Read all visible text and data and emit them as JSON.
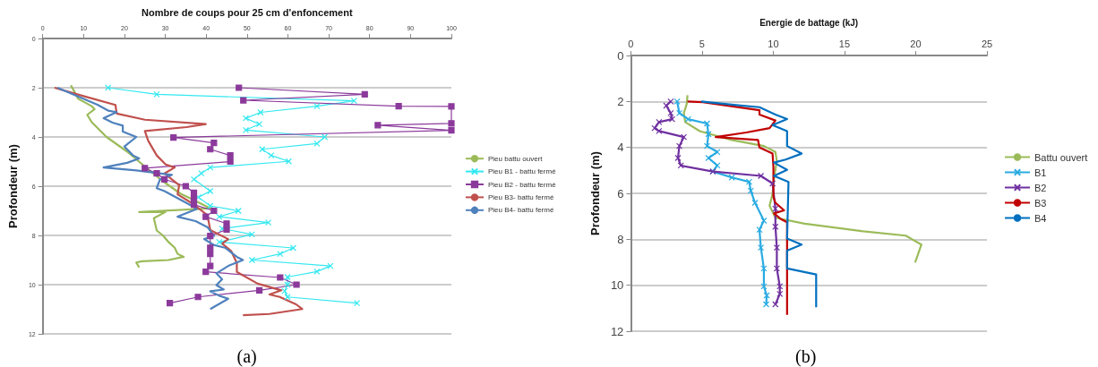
{
  "chart_data": [
    {
      "type": "line",
      "xlabel": "Nombre de coups pour 25 cm d'enfoncement",
      "ylabel": "Profondeur (m)",
      "xlim": [
        0,
        100
      ],
      "xticks": [
        0,
        10,
        20,
        30,
        40,
        50,
        60,
        70,
        80,
        90,
        100
      ],
      "ylim": [
        12,
        0
      ],
      "yticks": [
        0,
        2,
        4,
        6,
        8,
        10,
        12
      ],
      "grid": "y",
      "legend": "right",
      "annotations": [
        "(a)"
      ],
      "series": [
        {
          "name": "Pieu battu ouvert",
          "color": "#9bbb59",
          "marker": "none",
          "x": [
            6.9,
            8.7,
            12,
            12.7,
            10.9,
            12,
            15.6,
            20.7,
            25,
            29.4,
            33.7,
            37.4,
            41,
            23.6,
            30,
            27.2,
            27.9,
            29.4,
            30.8,
            32.3,
            33,
            34.5,
            30.8,
            24.3,
            22.9,
            23.6
          ],
          "values": [
            1.9,
            2.45,
            2.75,
            2.87,
            3.1,
            3.4,
            4.0,
            4.6,
            5.2,
            5.8,
            6.3,
            6.6,
            6.9,
            7.05,
            7.05,
            7.3,
            7.8,
            8.0,
            8.27,
            8.5,
            8.75,
            8.87,
            9.0,
            9.05,
            9.1,
            9.3
          ]
        },
        {
          "name": "Pieu B1 - battu fermé",
          "color": "#33e8f0",
          "marker": "cross",
          "x": [
            16,
            27.9,
            76.2,
            67.1,
            53.3,
            49.7,
            53,
            49.7,
            69,
            67.1,
            53.7,
            55.9,
            60.2,
            41,
            38.8,
            37,
            41,
            38.1,
            41,
            47.9,
            43.2,
            55.2,
            43.9,
            51.2,
            43.2,
            61.3,
            58.1,
            51.2,
            70.4,
            67.1,
            59.9,
            59.9,
            59.2,
            59.9,
            76.9
          ],
          "values": [
            2.0,
            2.27,
            2.53,
            2.75,
            3.0,
            3.24,
            3.48,
            3.72,
            4.0,
            4.27,
            4.5,
            4.75,
            4.99,
            5.24,
            5.48,
            5.72,
            6.2,
            6.45,
            6.8,
            7.0,
            7.24,
            7.48,
            7.72,
            7.96,
            8.27,
            8.51,
            8.75,
            9.0,
            9.24,
            9.47,
            9.69,
            10.0,
            10.26,
            10.5,
            10.75
          ]
        },
        {
          "name": "Pieu B2 - battu fermé",
          "color": "#8b3a9b",
          "marker": "square",
          "x": [
            48,
            78.8,
            49.1,
            87.1,
            100,
            100,
            82,
            100,
            32,
            41.9,
            41,
            45.9,
            45.9,
            25,
            27.9,
            29.8,
            35,
            37,
            37,
            37,
            41.9,
            39.9,
            45,
            45,
            41,
            41,
            41,
            41,
            39.9,
            58.1,
            62.1,
            53,
            38,
            31.1
          ],
          "values": [
            2.0,
            2.27,
            2.51,
            2.75,
            2.76,
            3.45,
            3.52,
            3.73,
            4.02,
            4.24,
            4.5,
            4.75,
            5.0,
            5.27,
            5.48,
            5.72,
            6.0,
            6.27,
            6.5,
            6.75,
            7.0,
            7.24,
            7.52,
            7.76,
            8.02,
            8.5,
            8.75,
            9.24,
            9.48,
            9.71,
            10.0,
            10.23,
            10.5,
            10.75
          ]
        },
        {
          "name": "Pieu B3- battu fermé",
          "color": "#c0504d",
          "marker": "none",
          "x": [
            2.9,
            9.8,
            17.8,
            18.1,
            25,
            39.9,
            35.2,
            25,
            25.8,
            27.9,
            30.1,
            32.3,
            29.8,
            31.6,
            33.4,
            33,
            36.6,
            40.3,
            41,
            45.4,
            43.9,
            46.1,
            47.5,
            47.5,
            52.6,
            58.4,
            55.5,
            58,
            62,
            63.5,
            55.5,
            49
          ],
          "values": [
            2.0,
            2.33,
            2.7,
            3.05,
            3.3,
            3.48,
            3.6,
            3.76,
            4.15,
            4.75,
            5.12,
            5.24,
            5.48,
            5.72,
            5.96,
            6.33,
            6.7,
            7.18,
            7.78,
            8.15,
            8.33,
            8.63,
            9.12,
            9.48,
            9.96,
            10.23,
            10.4,
            10.5,
            10.8,
            10.99,
            11.19,
            11.24
          ]
        },
        {
          "name": "Pieu B4- battu fermé",
          "color": "#4f81bd",
          "marker": "none",
          "x": [
            3.6,
            13.4,
            16,
            18.1,
            14.9,
            17.1,
            19.6,
            19.6,
            22.9,
            20,
            22.1,
            23.6,
            20.7,
            14.9,
            22.9,
            31.6,
            28.7,
            27.9,
            29.8,
            36.6,
            37.7,
            33,
            37.4,
            40.3,
            41.9,
            39.5,
            41.9,
            44.6,
            47.5,
            49,
            45.4,
            42.5,
            43.9,
            42.5,
            44.3,
            41,
            43.2,
            45.4,
            41
          ],
          "values": [
            2.0,
            2.69,
            2.93,
            2.99,
            3.24,
            3.42,
            3.54,
            3.78,
            4.0,
            4.39,
            4.75,
            4.87,
            5.05,
            5.24,
            5.36,
            5.54,
            5.72,
            6.08,
            6.2,
            6.81,
            6.93,
            7.24,
            7.42,
            7.66,
            8.02,
            8.15,
            8.39,
            8.5,
            8.87,
            9.0,
            9.24,
            9.54,
            9.78,
            10.02,
            10.2,
            10.27,
            10.45,
            10.57,
            10.99
          ]
        }
      ]
    },
    {
      "type": "line",
      "xlabel": "Energie de battage (kJ)",
      "ylabel": "Profondeur (m)",
      "xlim": [
        0,
        25
      ],
      "xticks": [
        0,
        5,
        10,
        15,
        20,
        25
      ],
      "ylim": [
        12,
        0
      ],
      "yticks": [
        0,
        2,
        4,
        6,
        8,
        10,
        12
      ],
      "grid": "y",
      "legend": "right",
      "annotations": [
        "(b)"
      ],
      "series": [
        {
          "name": "Battu ouvert",
          "color": "#9bbb59",
          "marker": "none",
          "x": [
            3.98,
            3.92,
            3.72,
            3.82,
            4.84,
            7.09,
            9.34,
            10.15,
            10.25,
            10.05,
            9.95,
            9.74,
            10.15,
            12.2,
            16.3,
            19.3,
            20.4,
            19.96
          ],
          "values": [
            1.73,
            2.12,
            2.51,
            2.9,
            3.29,
            3.68,
            3.94,
            4.2,
            4.59,
            5.37,
            6.02,
            6.54,
            7.06,
            7.32,
            7.65,
            7.84,
            8.23,
            9.01
          ]
        },
        {
          "name": "B1",
          "color": "#29abe2",
          "marker": "cross",
          "x": [
            3.25,
            3.41,
            4.02,
            5.35,
            5.45,
            5.35,
            6.07,
            5.45,
            6.07,
            5.76,
            7.09,
            8.31,
            8.42,
            8.72,
            9.34,
            9.03,
            9.13,
            9.34,
            9.34,
            9.54,
            9.5
          ],
          "values": [
            2.0,
            2.51,
            2.77,
            2.96,
            3.42,
            3.94,
            4.2,
            4.46,
            4.79,
            5.05,
            5.31,
            5.5,
            5.89,
            6.41,
            7.19,
            7.58,
            8.36,
            9.27,
            10.05,
            10.44,
            10.83
          ]
        },
        {
          "name": "B2",
          "color": "#7030a0",
          "marker": "cross",
          "x": [
            2.8,
            2.49,
            2.8,
            2.9,
            1.98,
            1.67,
            1.98,
            3.72,
            3.41,
            3.31,
            3.51,
            5.76,
            9.13,
            9.95,
            10.15,
            10.15,
            10.25,
            10.25,
            10.46,
            10.46,
            10.15
          ],
          "values": [
            2.0,
            2.18,
            2.51,
            2.77,
            2.9,
            3.16,
            3.29,
            3.55,
            3.94,
            4.46,
            4.79,
            5.05,
            5.24,
            5.57,
            6.67,
            7.45,
            8.36,
            9.27,
            10.05,
            10.38,
            10.83
          ]
        },
        {
          "name": "B3",
          "color": "#c00000",
          "marker": "none",
          "x": [
            3.98,
            5.05,
            9.03,
            9.03,
            10.15,
            9.74,
            8.11,
            5.96,
            8.93,
            9.03,
            9.95,
            10.01,
            10.01,
            10.15,
            10.76,
            10.05,
            10.56,
            10.97,
            10.97
          ],
          "values": [
            2.0,
            2.03,
            2.38,
            2.57,
            2.83,
            3.16,
            3.35,
            3.55,
            3.68,
            4.0,
            4.27,
            4.85,
            6.15,
            6.41,
            6.74,
            6.87,
            7.13,
            7.26,
            11.29
          ]
        },
        {
          "name": "B4",
          "color": "#0070c0",
          "marker": "none",
          "x": [
            4.94,
            7.7,
            9.03,
            10.15,
            10.97,
            9.95,
            10.97,
            10.97,
            11.99,
            10.87,
            10.05,
            10.97,
            10.05,
            11.07,
            10.97,
            11.99,
            10.97,
            10.97,
            13.01,
            13.01
          ],
          "values": [
            2.0,
            2.18,
            2.25,
            2.57,
            2.77,
            3.03,
            3.29,
            3.94,
            4.27,
            4.53,
            4.66,
            4.98,
            5.24,
            5.5,
            7.97,
            8.23,
            8.49,
            9.27,
            9.53,
            10.96
          ]
        }
      ]
    }
  ]
}
